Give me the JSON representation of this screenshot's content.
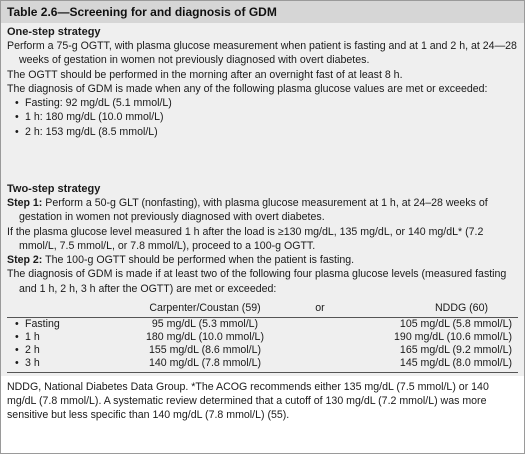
{
  "title": "Table 2.6—Screening for and diagnosis of GDM",
  "one_step": {
    "heading": "One-step strategy",
    "p1": "Perform a 75-g OGTT, with plasma glucose measurement when patient is fasting and at 1 and 2 h, at 24—28 weeks of gestation in women not previously diagnosed with overt diabetes.",
    "p2": "The OGTT should be performed in the morning after an overnight fast of at least 8 h.",
    "p3": "The diagnosis of GDM is made when any of the following plasma glucose values are met or exceeded:",
    "bullets": [
      "Fasting: 92 mg/dL (5.1 mmol/L)",
      "1 h: 180 mg/dL (10.0 mmol/L)",
      "2 h: 153 mg/dL (8.5 mmol/L)"
    ]
  },
  "two_step": {
    "heading": "Two-step strategy",
    "step1_label": "Step 1:",
    "step1_text": "Perform a 50-g GLT (nonfasting), with plasma glucose measurement at 1 h, at 24–28 weeks of gestation in women not previously diagnosed with overt diabetes.",
    "p_if": "If the plasma glucose level measured 1 h after the load is ≥130 mg/dL, 135 mg/dL, or 140 mg/dL* (7.2 mmol/L, 7.5 mmol/L, or 7.8 mmol/L), proceed to a 100-g OGTT.",
    "step2_label": "Step 2:",
    "step2_text": "The 100-g OGTT should be performed when the patient is fasting.",
    "p_diag": "The diagnosis of GDM is made if at least two of the following four plasma glucose levels (measured fasting and 1 h, 2 h, 3 h after the OGTT) are met or exceeded:",
    "table": {
      "col_cc": "Carpenter/Coustan (59)",
      "col_or": "or",
      "col_nddg": "NDDG (60)",
      "rows": [
        {
          "label": "Fasting",
          "cc": "95 mg/dL (5.3 mmol/L)",
          "nddg": "105 mg/dL (5.8 mmol/L)"
        },
        {
          "label": "1 h",
          "cc": "180 mg/dL (10.0 mmol/L)",
          "nddg": "190 mg/dL (10.6 mmol/L)"
        },
        {
          "label": "2 h",
          "cc": "155 mg/dL (8.6 mmol/L)",
          "nddg": "165 mg/dL (9.2 mmol/L)"
        },
        {
          "label": "3 h",
          "cc": "140 mg/dL (7.8 mmol/L)",
          "nddg": "145 mg/dL (8.0 mmol/L)"
        }
      ]
    }
  },
  "footnote": "NDDG, National Diabetes Data Group. *The ACOG recommends either 135 mg/dL (7.5 mmol/L) or 140 mg/dL (7.8 mmol/L). A systematic review determined that a cutoff of 130 mg/dL (7.2 mmol/L) was more sensitive but less specific than 140 mg/dL (7.8 mmol/L) (55)."
}
